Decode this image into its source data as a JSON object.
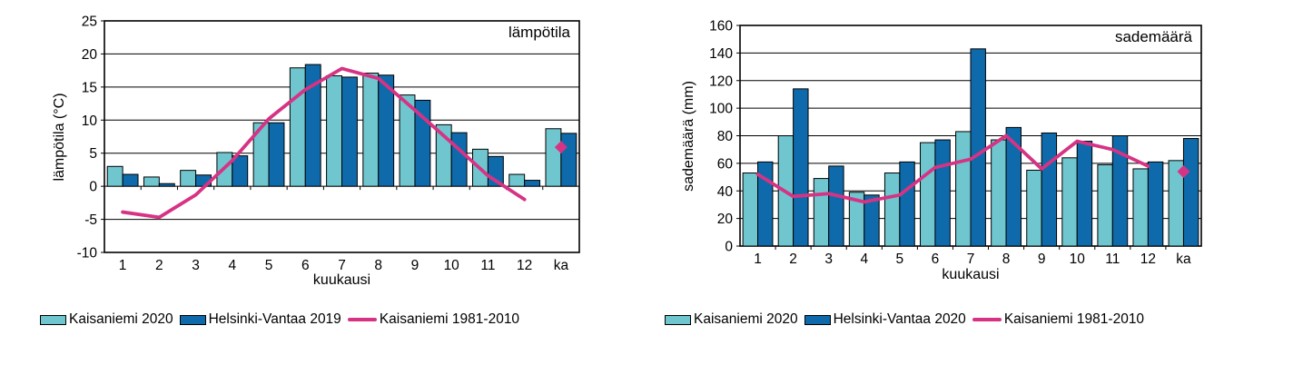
{
  "chart_data": [
    {
      "type": "bar",
      "corner_label": "lämpötila",
      "ylabel": "lämpötila (°C)",
      "xlabel": "kuukausi",
      "ylim": [
        -10,
        25
      ],
      "yticks": [
        25,
        20,
        15,
        10,
        5,
        0,
        -5,
        -10
      ],
      "grid": "horizontal",
      "legend_position": "bottom",
      "categories": [
        "1",
        "2",
        "3",
        "4",
        "5",
        "6",
        "7",
        "8",
        "9",
        "10",
        "11",
        "12",
        "ka"
      ],
      "series": [
        {
          "name": "Kaisaniemi 2020",
          "color": "#6fc6cf",
          "values": [
            3.0,
            1.4,
            2.4,
            5.1,
            9.6,
            17.9,
            16.7,
            17.1,
            13.8,
            9.3,
            5.6,
            1.8,
            8.7
          ]
        },
        {
          "name": "Helsinki-Vantaa 2019",
          "color": "#0f6aab",
          "values": [
            1.8,
            0.4,
            1.7,
            4.6,
            9.6,
            18.4,
            16.5,
            16.8,
            13.0,
            8.1,
            4.5,
            0.9,
            8.0
          ]
        }
      ],
      "line_series": {
        "name": "Kaisaniemi 1981-2010",
        "color": "#d63384",
        "months_values": [
          -3.9,
          -4.7,
          -1.3,
          3.9,
          10.2,
          14.6,
          17.8,
          16.3,
          11.5,
          6.6,
          1.6,
          -2.0
        ],
        "ka_marker": 5.9
      }
    },
    {
      "type": "bar",
      "corner_label": "sademäärä",
      "ylabel": "sademäärä (mm)",
      "xlabel": "kuukausi",
      "ylim": [
        0,
        160
      ],
      "yticks": [
        160,
        140,
        120,
        100,
        80,
        60,
        40,
        20,
        0
      ],
      "grid": "horizontal",
      "legend_position": "bottom",
      "categories": [
        "1",
        "2",
        "3",
        "4",
        "5",
        "6",
        "7",
        "8",
        "9",
        "10",
        "11",
        "12",
        "ka"
      ],
      "series": [
        {
          "name": "Kaisaniemi 2020",
          "color": "#6fc6cf",
          "values": [
            53,
            80,
            49,
            39,
            53,
            75,
            83,
            77,
            55,
            64,
            59,
            56,
            62
          ]
        },
        {
          "name": "Helsinki-Vantaa 2020",
          "color": "#0f6aab",
          "values": [
            61,
            114,
            58,
            37,
            61,
            77,
            143,
            86,
            82,
            76,
            80,
            61,
            78
          ]
        }
      ],
      "line_series": {
        "name": "Kaisaniemi 1981-2010",
        "color": "#d63384",
        "months_values": [
          52,
          36,
          38,
          32,
          37,
          57,
          63,
          80,
          56,
          76,
          70,
          58
        ],
        "ka_marker": 54
      }
    }
  ]
}
